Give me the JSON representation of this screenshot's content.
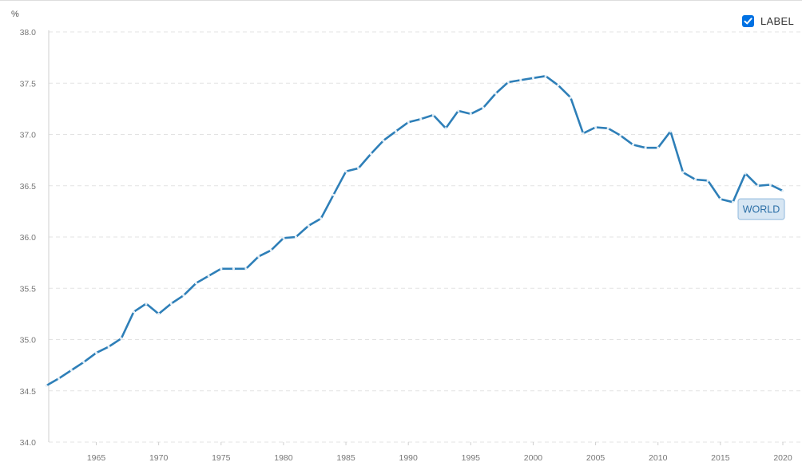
{
  "header": {
    "unit": "%"
  },
  "legend": {
    "label": "LABEL",
    "checked": true
  },
  "chart_data": {
    "type": "line",
    "title": "",
    "xlabel": "",
    "ylabel": "%",
    "xlim": [
      1961,
      2020
    ],
    "ylim": [
      34.0,
      38.0
    ],
    "yticks": [
      "34.0",
      "34.5",
      "35.0",
      "35.5",
      "36.0",
      "36.5",
      "37.0",
      "37.5",
      "38.0"
    ],
    "xticks": [
      "1965",
      "1970",
      "1975",
      "1980",
      "1985",
      "1990",
      "1995",
      "2000",
      "2005",
      "2010",
      "2015",
      "2020"
    ],
    "grid": true,
    "colors": {
      "line": "#2e7fb8",
      "grid": "#e3e3e3",
      "label_bg": "#d7e6f3",
      "label_border": "#8fb8dc"
    },
    "series": [
      {
        "label": "WORLD",
        "x": [
          1961,
          1962,
          1963,
          1964,
          1965,
          1966,
          1967,
          1968,
          1969,
          1970,
          1971,
          1972,
          1973,
          1974,
          1975,
          1976,
          1977,
          1978,
          1979,
          1980,
          1981,
          1982,
          1983,
          1984,
          1985,
          1986,
          1987,
          1988,
          1989,
          1990,
          1991,
          1992,
          1993,
          1994,
          1995,
          1996,
          1997,
          1998,
          1999,
          2000,
          2001,
          2002,
          2003,
          2004,
          2005,
          2006,
          2007,
          2008,
          2009,
          2010,
          2011,
          2012,
          2013,
          2014,
          2015,
          2016,
          2017,
          2018,
          2019,
          2020
        ],
        "y": [
          34.55,
          34.62,
          34.7,
          34.78,
          34.87,
          34.93,
          35.01,
          35.27,
          35.35,
          35.25,
          35.35,
          35.43,
          35.55,
          35.62,
          35.69,
          35.69,
          35.69,
          35.81,
          35.87,
          35.99,
          36.0,
          36.11,
          36.18,
          36.41,
          36.64,
          36.67,
          36.81,
          36.94,
          37.03,
          37.12,
          37.15,
          37.19,
          37.06,
          37.23,
          37.2,
          37.26,
          37.4,
          37.51,
          37.53,
          37.55,
          37.57,
          37.48,
          37.36,
          37.01,
          37.07,
          37.06,
          36.99,
          36.9,
          36.87,
          36.87,
          37.03,
          36.63,
          36.56,
          36.55,
          36.37,
          36.34,
          36.62,
          36.5,
          36.51,
          36.45
        ]
      }
    ]
  }
}
